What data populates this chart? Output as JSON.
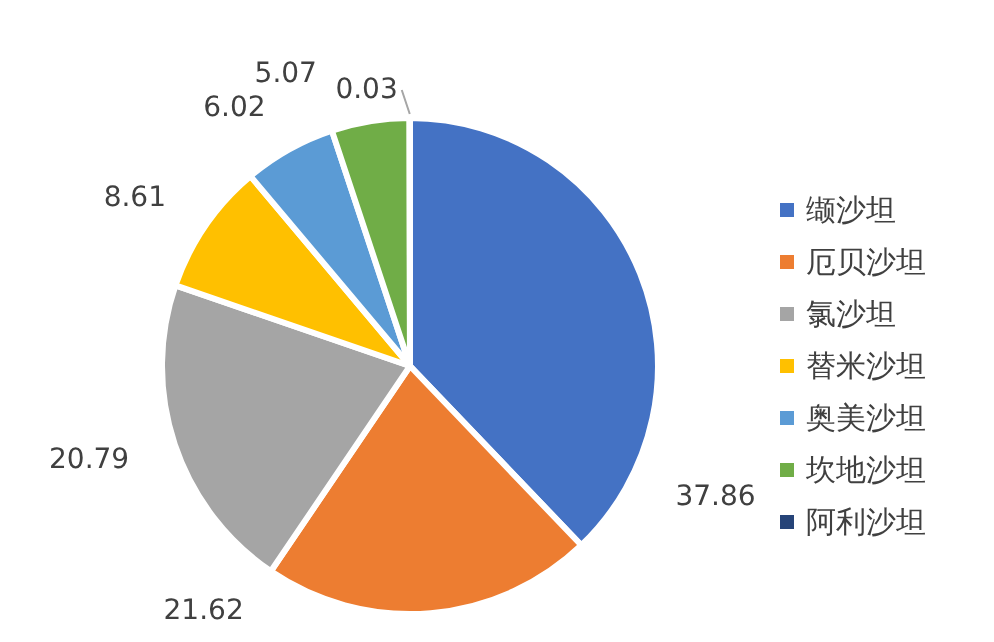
{
  "chart_data": {
    "type": "pie",
    "categories": [
      "缬沙坦",
      "厄贝沙坦",
      "氯沙坦",
      "替米沙坦",
      "奥美沙坦",
      "坎地沙坦",
      "阿利沙坦"
    ],
    "values": [
      37.86,
      21.62,
      20.79,
      8.61,
      6.02,
      5.07,
      0.03
    ],
    "colors": [
      "#4472c4",
      "#ed7d31",
      "#a5a5a5",
      "#ffc000",
      "#5b9bd5",
      "#70ad47",
      "#264478"
    ],
    "data_labels": true,
    "legend": "right"
  }
}
